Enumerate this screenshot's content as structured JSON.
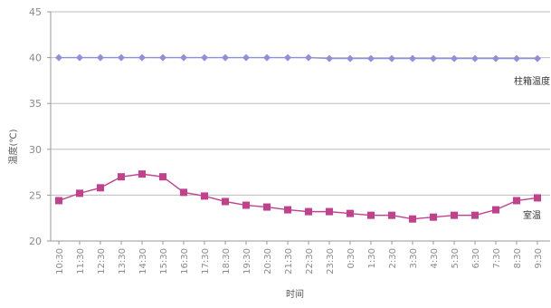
{
  "chart_data": {
    "type": "line",
    "title": "",
    "xlabel": "时间",
    "ylabel": "温度(℃)",
    "ylim": [
      20,
      45
    ],
    "yticks": [
      20,
      25,
      30,
      35,
      40,
      45
    ],
    "grid": true,
    "categories": [
      "10:30",
      "11:30",
      "12:30",
      "13:30",
      "14:30",
      "15:30",
      "16:30",
      "17:30",
      "18:30",
      "19:30",
      "20:30",
      "21:30",
      "22:30",
      "23:30",
      "0:30",
      "1:30",
      "2:30",
      "3:30",
      "4:30",
      "5:30",
      "6:30",
      "7:30",
      "8:30",
      "9:30"
    ],
    "series": [
      {
        "name": "柱箱温度",
        "color": "#8f8fdb",
        "marker": "diamond",
        "values": [
          40.0,
          40.0,
          40.0,
          40.0,
          40.0,
          40.0,
          40.0,
          40.0,
          40.0,
          40.0,
          40.0,
          40.0,
          40.0,
          39.9,
          39.9,
          39.9,
          39.9,
          39.9,
          39.9,
          39.9,
          39.9,
          39.9,
          39.9,
          39.9
        ]
      },
      {
        "name": "室温",
        "color": "#c2418d",
        "marker": "square",
        "values": [
          24.4,
          25.2,
          25.8,
          27.0,
          27.3,
          27.0,
          25.3,
          24.9,
          24.3,
          23.9,
          23.7,
          23.4,
          23.2,
          23.2,
          23.0,
          22.8,
          22.8,
          22.4,
          22.6,
          22.8,
          22.8,
          23.4,
          24.4,
          24.7
        ]
      }
    ]
  }
}
